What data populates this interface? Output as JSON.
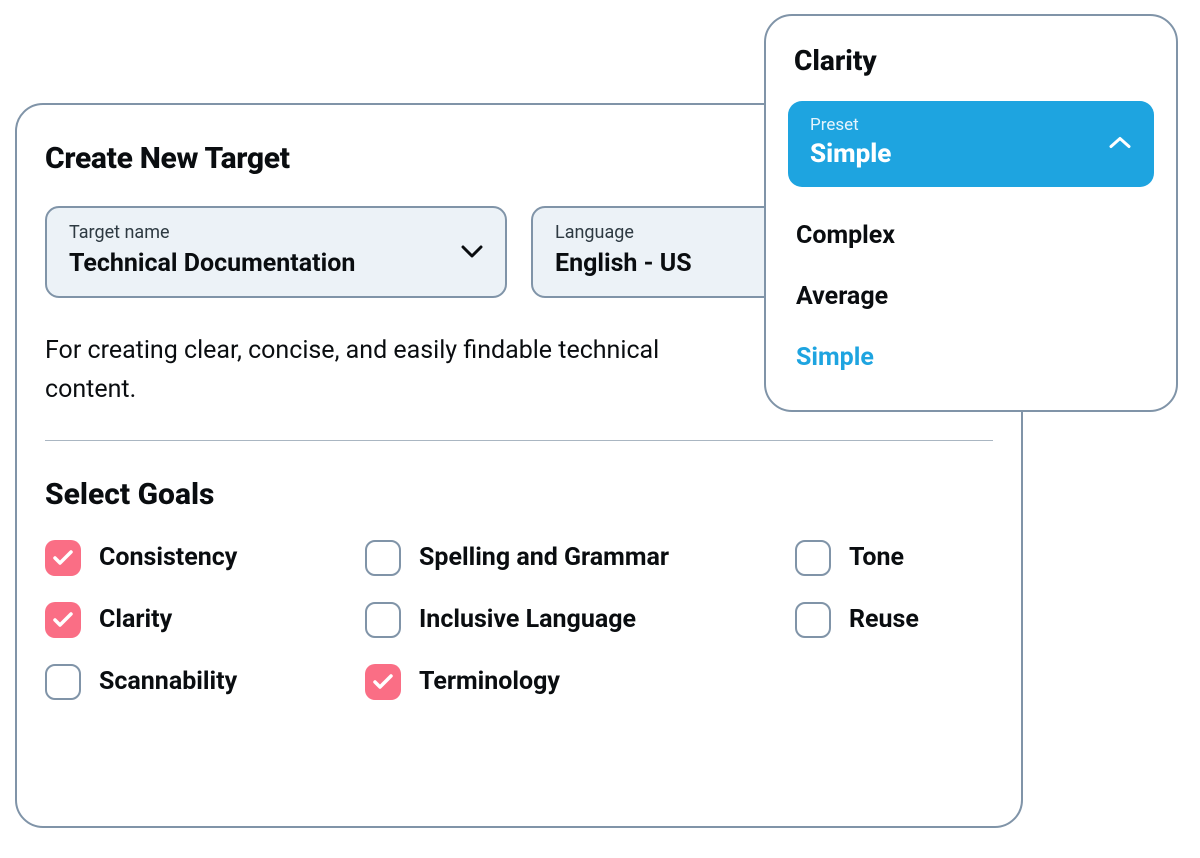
{
  "colors": {
    "border": "#8094a8",
    "field_bg": "#ecf2f7",
    "accent_pink": "#fa6e85",
    "accent_blue": "#1ea4e0",
    "text": "#0a0d10",
    "divider": "#aab6c2"
  },
  "main": {
    "title": "Create New Target",
    "fields": {
      "target_name": {
        "label": "Target name",
        "value": "Technical Documentation"
      },
      "language": {
        "label": "Language",
        "value": "English - US"
      }
    },
    "description": "For creating clear, concise, and easily findable technical content.",
    "goals_title": "Select Goals",
    "goals": [
      {
        "label": "Consistency",
        "checked": true
      },
      {
        "label": "Spelling and Grammar",
        "checked": false
      },
      {
        "label": "Tone",
        "checked": false
      },
      {
        "label": "Clarity",
        "checked": true
      },
      {
        "label": "Inclusive Language",
        "checked": false
      },
      {
        "label": "Reuse",
        "checked": false
      },
      {
        "label": "Scannability",
        "checked": false
      },
      {
        "label": "Terminology",
        "checked": true
      }
    ]
  },
  "popover": {
    "title": "Clarity",
    "preset_label": "Preset",
    "preset_value": "Simple",
    "options": [
      {
        "label": "Complex",
        "active": false
      },
      {
        "label": "Average",
        "active": false
      },
      {
        "label": "Simple",
        "active": true
      }
    ]
  }
}
